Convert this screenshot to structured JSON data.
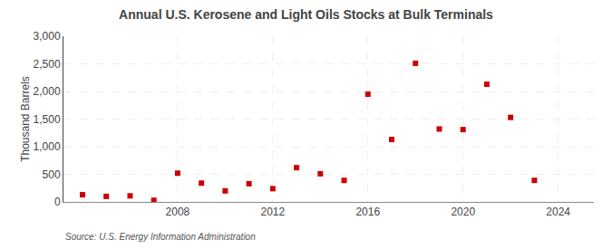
{
  "chart_data": {
    "type": "scatter",
    "title": "Annual U.S. Kerosene and Light Oils Stocks at Bulk Terminals",
    "y_label": "Thousand Barrels",
    "annotations": [
      "Source: U.S. Energy Information Administration"
    ],
    "x": [
      2004,
      2005,
      2006,
      2007,
      2008,
      2009,
      2010,
      2011,
      2012,
      2013,
      2014,
      2015,
      2016,
      2017,
      2018,
      2019,
      2020,
      2021,
      2022,
      2023
    ],
    "values": [
      130,
      100,
      110,
      30,
      520,
      340,
      200,
      330,
      240,
      620,
      510,
      390,
      1950,
      1130,
      2510,
      1320,
      1310,
      2130,
      1530,
      390
    ],
    "color": "#cc0000",
    "marker": "square",
    "xlim": [
      2003.2,
      2025.5
    ],
    "xticks": [
      2008,
      2012,
      2016,
      2020,
      2024
    ],
    "ylim": [
      0,
      3000
    ],
    "yticks": [
      0,
      500,
      {
        "value": 1000,
        "label": "1,000"
      },
      {
        "value": 1500,
        "label": "1,500"
      },
      {
        "value": 2000,
        "label": "2,000"
      },
      {
        "value": 2500,
        "label": "2,500"
      },
      {
        "value": 3000,
        "label": "3,000"
      }
    ],
    "grid": true
  }
}
